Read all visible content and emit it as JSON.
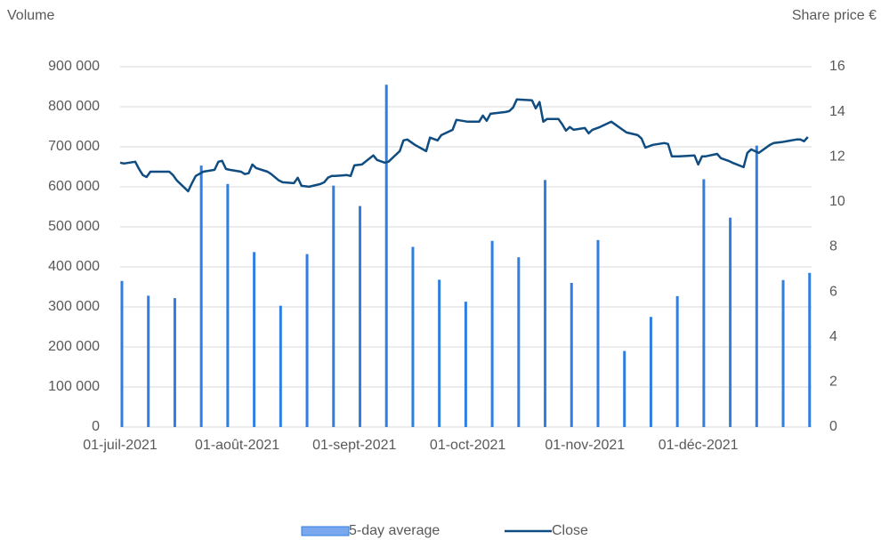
{
  "chart_data": {
    "type": "bar_line",
    "ylabel": "Volume",
    "y2label": "Share price €",
    "xlim": [
      "2021-07-01",
      "2021-12-31"
    ],
    "xticks": [
      {
        "value": "2021-07-01",
        "label": "01-juil-2021"
      },
      {
        "value": "2021-08-01",
        "label": "01-août-2021"
      },
      {
        "value": "2021-09-01",
        "label": "01-sept-2021"
      },
      {
        "value": "2021-10-01",
        "label": "01-oct-2021"
      },
      {
        "value": "2021-11-01",
        "label": "01-nov-2021"
      },
      {
        "value": "2021-12-01",
        "label": "01-déc-2021"
      }
    ],
    "ylim": [
      0,
      900000
    ],
    "yticks": [
      0,
      {
        "value": 100000,
        "label": "100 000"
      },
      {
        "value": 200000,
        "label": "200 000"
      },
      {
        "value": 300000,
        "label": "300 000"
      },
      {
        "value": 400000,
        "label": "400 000"
      },
      {
        "value": 500000,
        "label": "500 000"
      },
      {
        "value": 600000,
        "label": "600 000"
      },
      {
        "value": 700000,
        "label": "700 000"
      },
      {
        "value": 800000,
        "label": "800 000"
      },
      {
        "value": 900000,
        "label": "900 000"
      }
    ],
    "y2lim": [
      0,
      16
    ],
    "y2ticks": [
      0,
      2,
      4,
      6,
      8,
      10,
      12,
      14,
      16
    ],
    "grid": true,
    "legend": "bottom",
    "series": [
      {
        "name": "5-day average",
        "type": "bar",
        "axis": "y",
        "color": "#2f7ee0",
        "x": [
          "2021-07-01",
          "2021-07-08",
          "2021-07-15",
          "2021-07-22",
          "2021-07-29",
          "2021-08-05",
          "2021-08-12",
          "2021-08-19",
          "2021-08-26",
          "2021-09-02",
          "2021-09-09",
          "2021-09-16",
          "2021-09-23",
          "2021-09-30",
          "2021-10-07",
          "2021-10-14",
          "2021-10-21",
          "2021-10-28",
          "2021-11-04",
          "2021-11-11",
          "2021-11-18",
          "2021-11-25",
          "2021-12-02",
          "2021-12-09",
          "2021-12-16",
          "2021-12-23",
          "2021-12-30"
        ],
        "values": [
          365000,
          328000,
          322000,
          653000,
          607000,
          437000,
          303000,
          432000,
          603000,
          552000,
          855000,
          450000,
          368000,
          313000,
          465000,
          424000,
          617000,
          360000,
          467000,
          190000,
          275000,
          327000,
          619000,
          523000,
          703000,
          367000,
          385000
        ]
      },
      {
        "name": "Close",
        "type": "line",
        "axis": "y2",
        "color": "#0f4c81",
        "x": [
          "2021-07-01",
          "2021-07-02",
          "2021-07-05",
          "2021-07-06",
          "2021-07-07",
          "2021-07-08",
          "2021-07-09",
          "2021-07-12",
          "2021-07-14",
          "2021-07-15",
          "2021-07-16",
          "2021-07-19",
          "2021-07-20",
          "2021-07-21",
          "2021-07-23",
          "2021-07-26",
          "2021-07-27",
          "2021-07-28",
          "2021-07-29",
          "2021-07-30",
          "2021-08-02",
          "2021-08-03",
          "2021-08-04",
          "2021-08-05",
          "2021-08-06",
          "2021-08-09",
          "2021-08-10",
          "2021-08-12",
          "2021-08-13",
          "2021-08-16",
          "2021-08-17",
          "2021-08-18",
          "2021-08-20",
          "2021-08-23",
          "2021-08-24",
          "2021-08-25",
          "2021-08-26",
          "2021-08-27",
          "2021-08-30",
          "2021-08-31",
          "2021-09-01",
          "2021-09-03",
          "2021-09-06",
          "2021-09-07",
          "2021-09-09",
          "2021-09-10",
          "2021-09-13",
          "2021-09-14",
          "2021-09-15",
          "2021-09-17",
          "2021-09-20",
          "2021-09-21",
          "2021-09-23",
          "2021-09-24",
          "2021-09-27",
          "2021-09-28",
          "2021-10-01",
          "2021-10-04",
          "2021-10-05",
          "2021-10-06",
          "2021-10-07",
          "2021-10-11",
          "2021-10-12",
          "2021-10-13",
          "2021-10-14",
          "2021-10-18",
          "2021-10-19",
          "2021-10-20",
          "2021-10-21",
          "2021-10-22",
          "2021-10-25",
          "2021-10-26",
          "2021-10-27",
          "2021-10-28",
          "2021-10-29",
          "2021-11-01",
          "2021-11-02",
          "2021-11-03",
          "2021-11-05",
          "2021-11-08",
          "2021-11-09",
          "2021-11-11",
          "2021-11-12",
          "2021-11-15",
          "2021-11-16",
          "2021-11-17",
          "2021-11-19",
          "2021-11-22",
          "2021-11-23",
          "2021-11-24",
          "2021-11-26",
          "2021-11-30",
          "2021-12-01",
          "2021-12-02",
          "2021-12-03",
          "2021-12-06",
          "2021-12-07",
          "2021-12-09",
          "2021-12-10",
          "2021-12-13",
          "2021-12-14",
          "2021-12-15",
          "2021-12-17",
          "2021-12-20",
          "2021-12-21",
          "2021-12-23",
          "2021-12-27",
          "2021-12-28",
          "2021-12-29",
          "2021-12-30"
        ],
        "values": [
          11.74,
          11.7,
          11.78,
          11.46,
          11.19,
          11.1,
          11.34,
          11.34,
          11.34,
          11.19,
          10.95,
          10.47,
          10.83,
          11.15,
          11.34,
          11.42,
          11.78,
          11.82,
          11.46,
          11.42,
          11.34,
          11.23,
          11.27,
          11.66,
          11.5,
          11.34,
          11.23,
          10.95,
          10.87,
          10.83,
          11.07,
          10.71,
          10.67,
          10.79,
          10.87,
          11.07,
          11.15,
          11.15,
          11.19,
          11.15,
          11.62,
          11.66,
          12.06,
          11.86,
          11.74,
          11.78,
          12.25,
          12.73,
          12.77,
          12.53,
          12.25,
          12.85,
          12.73,
          12.96,
          13.2,
          13.64,
          13.56,
          13.56,
          13.83,
          13.6,
          13.91,
          13.99,
          14.03,
          14.19,
          14.55,
          14.51,
          14.15,
          14.43,
          13.56,
          13.68,
          13.68,
          13.44,
          13.16,
          13.32,
          13.2,
          13.28,
          13.04,
          13.2,
          13.32,
          13.56,
          13.44,
          13.2,
          13.08,
          12.96,
          12.81,
          12.41,
          12.53,
          12.61,
          12.57,
          12.02,
          12.02,
          12.06,
          11.66,
          12.02,
          12.02,
          12.13,
          11.94,
          11.82,
          11.74,
          11.54,
          12.17,
          12.33,
          12.17,
          12.53,
          12.61,
          12.65,
          12.77,
          12.77,
          12.69,
          12.88
        ]
      }
    ]
  }
}
